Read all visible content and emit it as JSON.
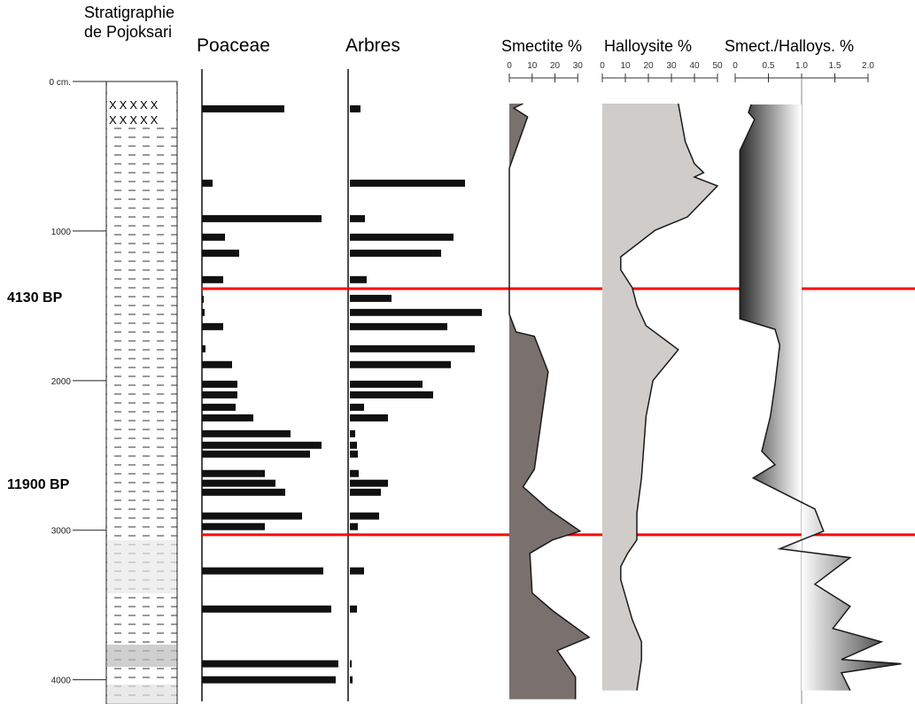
{
  "chart_data": [
    {
      "type": "stratigraphy",
      "title_lines": [
        "Stratigraphie",
        "de Pojoksari"
      ],
      "ylim": [
        0,
        4150
      ],
      "yticks": [
        {
          "value": 0,
          "label": "0 cm."
        },
        1000,
        2000,
        3000,
        4000
      ],
      "annotations": [
        {
          "label": "4130 BP",
          "depth": 1385,
          "color": "#ff0000"
        },
        {
          "label": "11900 BP",
          "depth": 3030,
          "color": "#ff0000"
        }
      ]
    },
    {
      "type": "bar",
      "title": "Poaceae",
      "color": "#111111",
      "x": [
        183,
        680,
        917,
        1041,
        1148,
        1325,
        1456,
        1544,
        1639,
        1787,
        1893,
        2024,
        2095,
        2178,
        2249,
        2355,
        2432,
        2491,
        2621,
        2686,
        2746,
        2905,
        2976,
        3272,
        3527,
        3893,
        4000
      ],
      "values": [
        93,
        12,
        135,
        26,
        42,
        24,
        2,
        3,
        24,
        4,
        34,
        40,
        40,
        38,
        58,
        100,
        135,
        122,
        71,
        83,
        94,
        113,
        71,
        137,
        146,
        154,
        151
      ]
    },
    {
      "type": "bar",
      "title": "Arbres",
      "color": "#111111",
      "x": [
        183,
        680,
        917,
        1041,
        1148,
        1325,
        1450,
        1544,
        1639,
        1787,
        1893,
        2024,
        2095,
        2178,
        2249,
        2355,
        2432,
        2491,
        2621,
        2686,
        2746,
        2905,
        2976,
        3272,
        3527,
        3893,
        4000
      ],
      "values": [
        12,
        130,
        17,
        117,
        103,
        19,
        47,
        149,
        110,
        141,
        114,
        82,
        94,
        16,
        43,
        6,
        8,
        9,
        10,
        43,
        35,
        33,
        9,
        16,
        8,
        2,
        3
      ]
    },
    {
      "type": "area",
      "title": "Smectite %",
      "color": "#7a706e",
      "xlim": [
        0,
        40
      ],
      "xticks": [
        0,
        10,
        20,
        30
      ],
      "x": [
        148,
        178,
        237,
        580,
        1556,
        1675,
        1704,
        1941,
        2592,
        2710,
        2858,
        3006,
        3065,
        3154,
        3420,
        3538,
        3716,
        3805,
        3982,
        4130
      ],
      "values": [
        6,
        2,
        8,
        0,
        0,
        3,
        11,
        17,
        11,
        6,
        17,
        31,
        19,
        9,
        10,
        19,
        35,
        21,
        29,
        29
      ]
    },
    {
      "type": "area",
      "title": "Halloysite %",
      "color": "#d0ccca",
      "xlim": [
        0,
        50
      ],
      "xticks": [
        0,
        10,
        20,
        30,
        40,
        50
      ],
      "x": [
        148,
        402,
        550,
        609,
        639,
        698,
        905,
        994,
        1172,
        1260,
        1379,
        1497,
        1633,
        1793,
        1999,
        2237,
        2651,
        2888,
        3065,
        3154,
        3243,
        3331,
        3598,
        3746,
        3864,
        4071
      ],
      "values": [
        33,
        36,
        40,
        44,
        40,
        50,
        37,
        23,
        8,
        8,
        13,
        15,
        19,
        33,
        22,
        19,
        17,
        15,
        15,
        11,
        8,
        8,
        13,
        17,
        17,
        15
      ]
    },
    {
      "type": "area",
      "title": "Smect./Halloys. %",
      "color": "#222222",
      "xlim": [
        0,
        2.6
      ],
      "reference": 1,
      "xticks": [
        0,
        0.5,
        {
          "value": 1,
          "label": "1.0"
        },
        1.5,
        {
          "value": 2,
          "label": "2.0"
        }
      ],
      "x": [
        154,
        207,
        254,
        462,
        1586,
        1657,
        1763,
        2024,
        2237,
        2473,
        2562,
        2651,
        2858,
        3006,
        3065,
        3124,
        3183,
        3361,
        3509,
        3657,
        3746,
        3864,
        3893,
        3953,
        4071
      ],
      "values": [
        0.24,
        0.2,
        0.29,
        0.07,
        0.07,
        0.6,
        0.67,
        0.6,
        0.53,
        0.4,
        0.6,
        0.27,
        1.2,
        1.33,
        1.0,
        0.67,
        1.73,
        1.2,
        1.73,
        1.47,
        2.2,
        1.6,
        2.5,
        1.6,
        1.73
      ]
    }
  ]
}
